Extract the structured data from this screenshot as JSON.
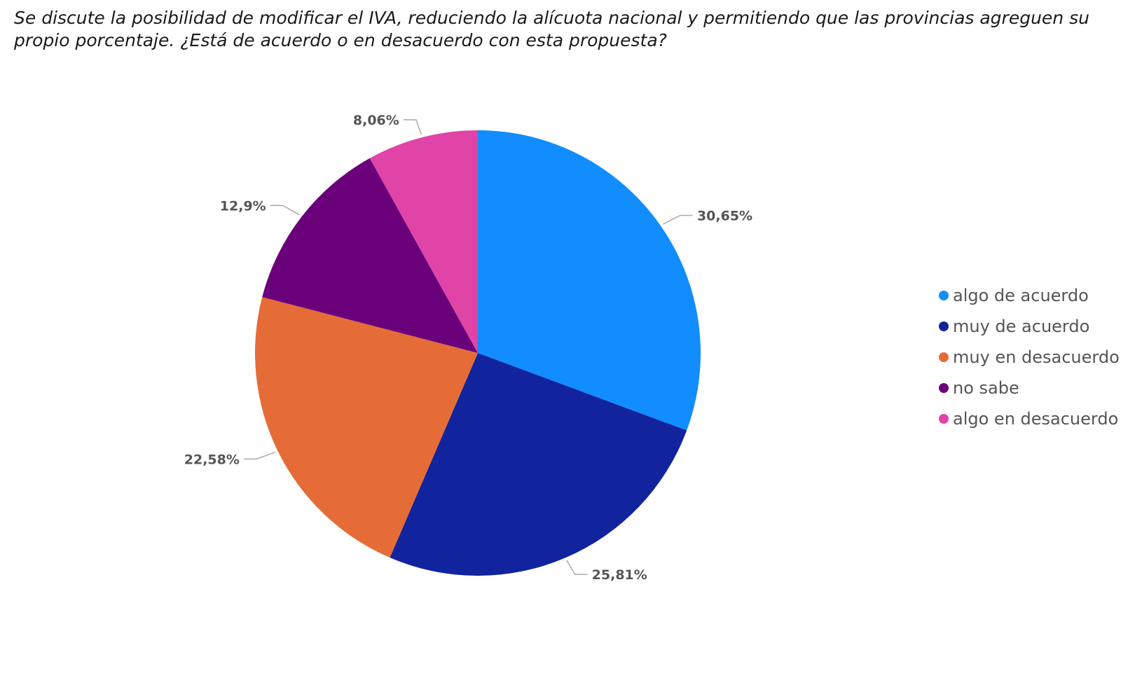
{
  "chart_data": {
    "type": "pie",
    "title": "Se discute la posibilidad de modificar el IVA, reduciendo la alícuota nacional y permitiendo que las provincias agreguen su propio porcentaje. ¿Está de acuerdo o en desacuerdo con esta propuesta?",
    "legend_position": "right",
    "slices": [
      {
        "name": "algo de acuerdo",
        "value": 30.65,
        "label": "30,65%",
        "color": "#118DFF"
      },
      {
        "name": "muy de acuerdo",
        "value": 25.81,
        "label": "25,81%",
        "color": "#12239E"
      },
      {
        "name": "muy en desacuerdo",
        "value": 22.58,
        "label": "22,58%",
        "color": "#E66C37"
      },
      {
        "name": "no sabe",
        "value": 12.9,
        "label": "12,9%",
        "color": "#6B007B"
      },
      {
        "name": "algo en desacuerdo",
        "value": 8.06,
        "label": "8,06%",
        "color": "#E044A7"
      }
    ]
  }
}
